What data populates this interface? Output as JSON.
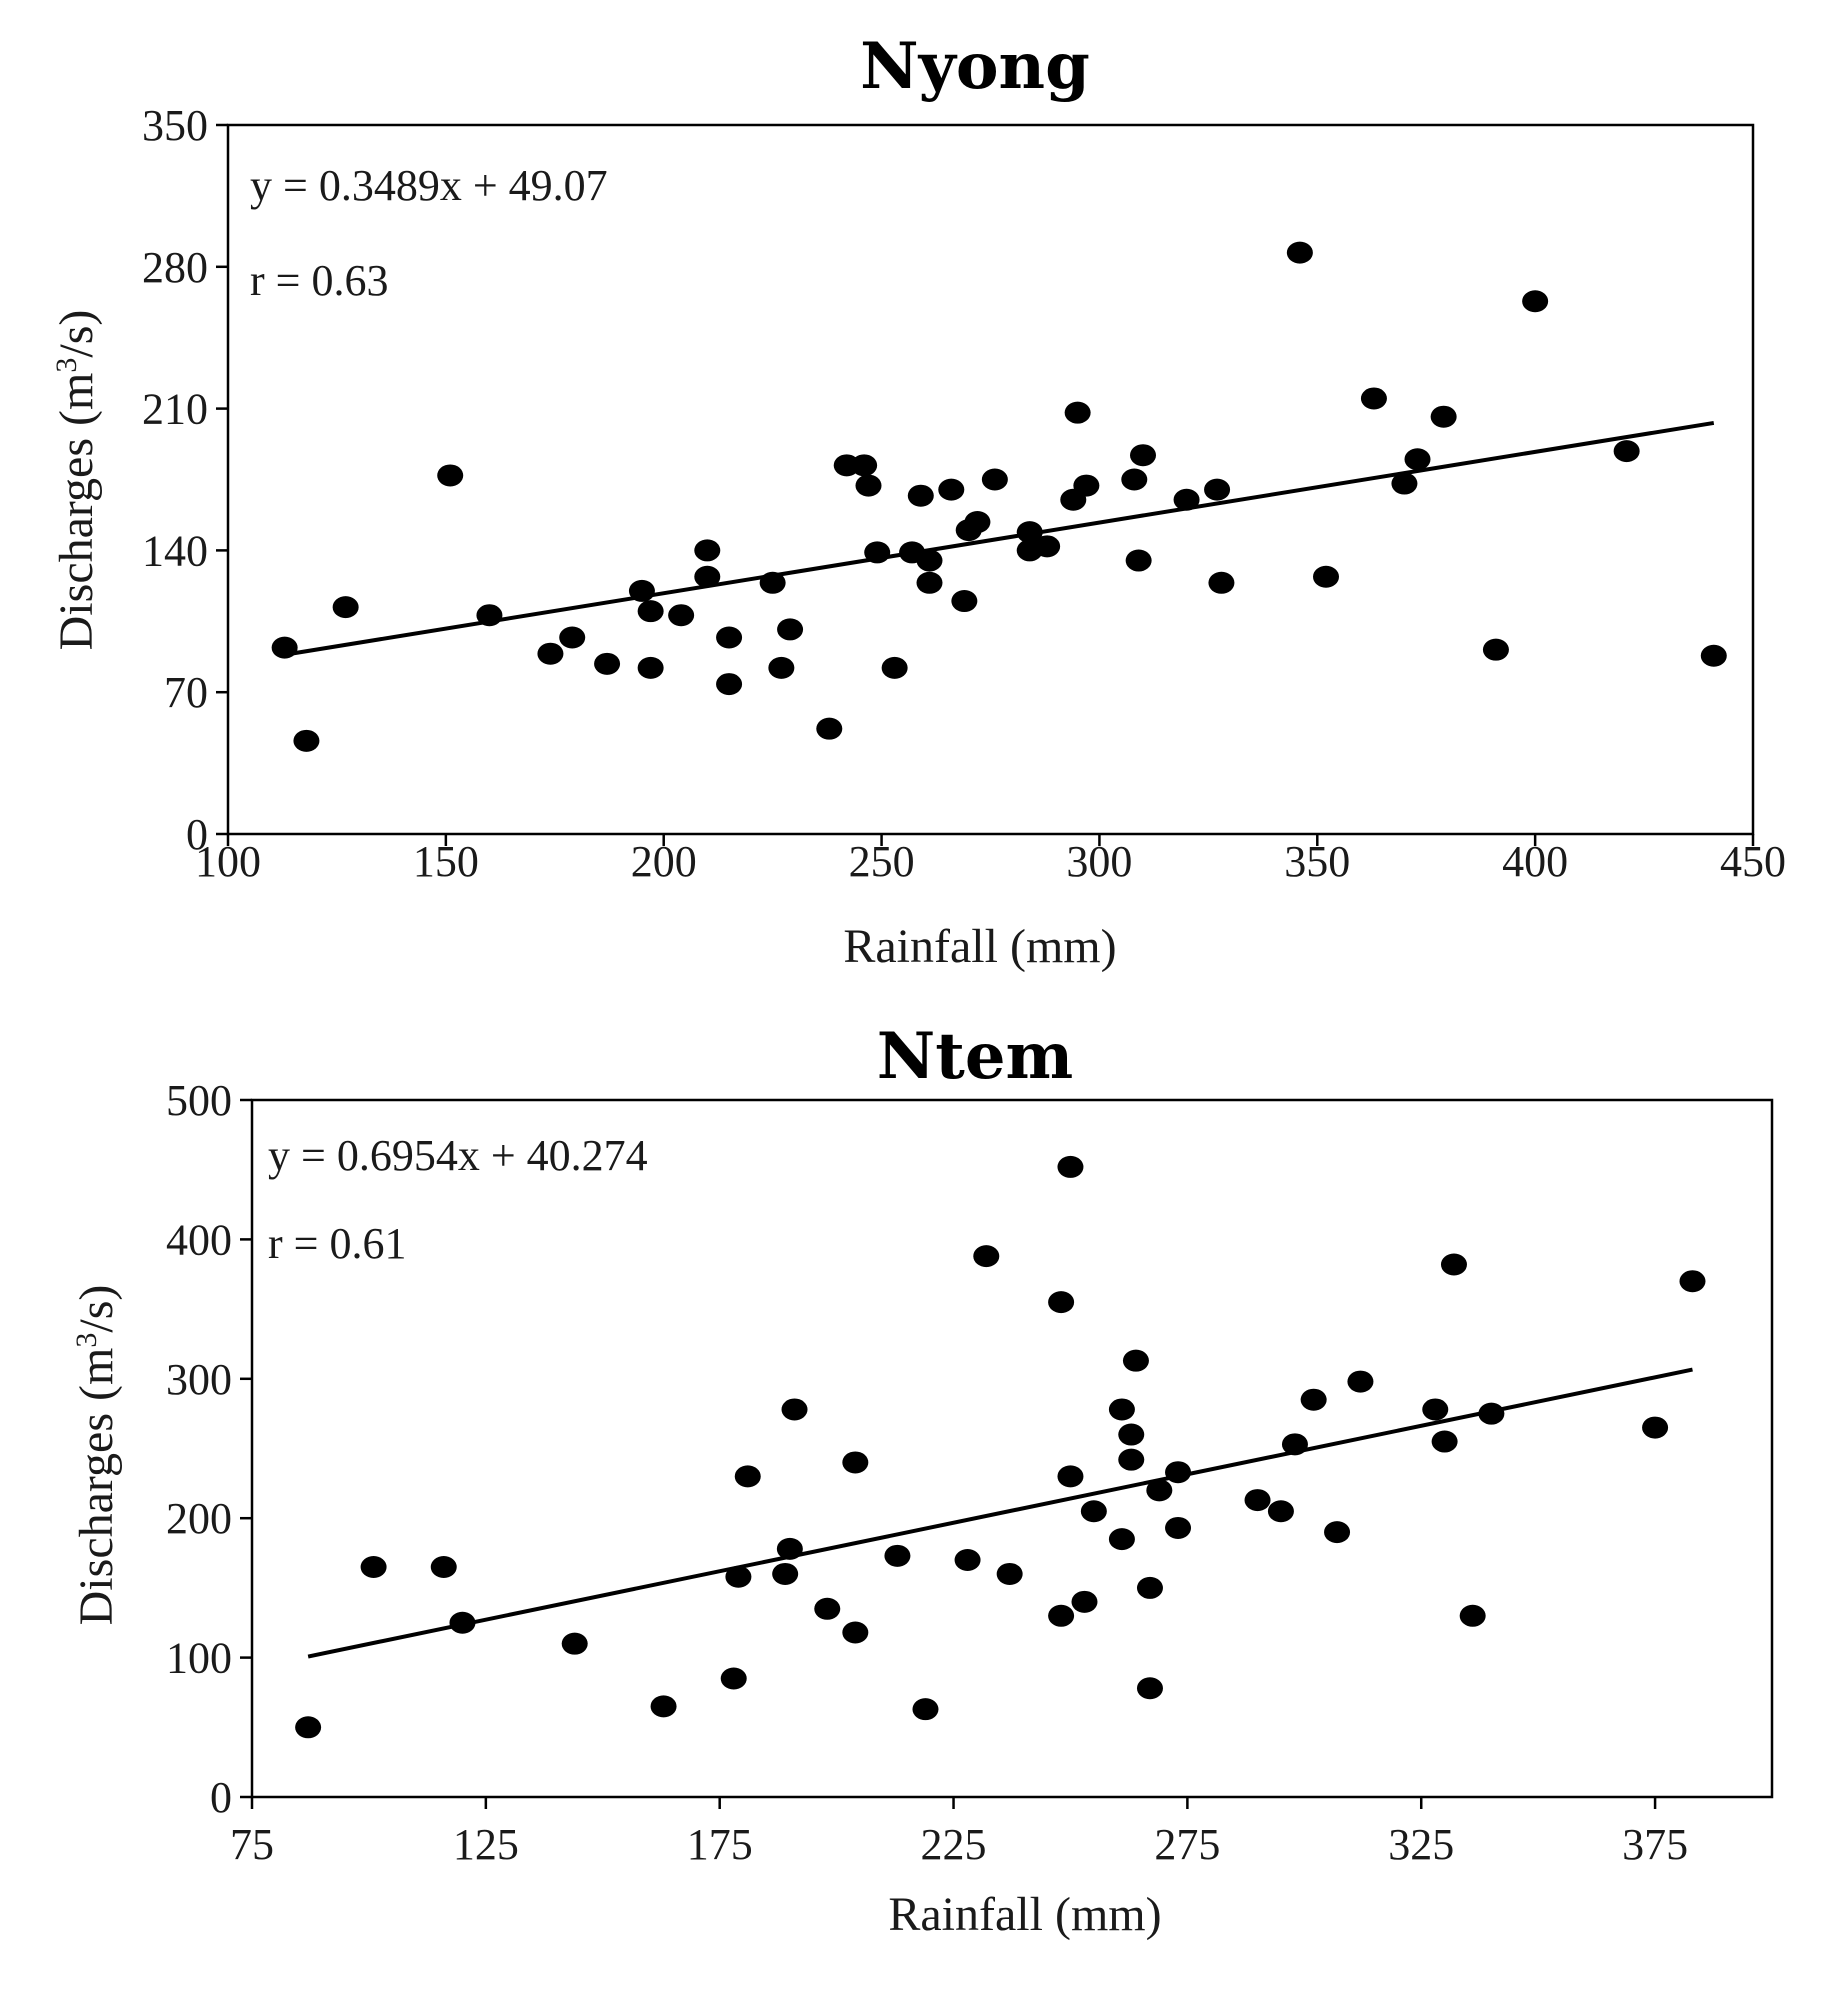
{
  "chart_data": [
    {
      "type": "scatter",
      "title": "Nyong",
      "xlabel": "Rainfall (mm)",
      "ylabel_prefix": "Discharges (m",
      "ylabel_sup": "3",
      "ylabel_suffix": "/s)",
      "xlim": [
        100,
        450
      ],
      "ylim": [
        0,
        350
      ],
      "xticks": [
        "100",
        "150",
        "200",
        "250",
        "300",
        "350",
        "400",
        "450"
      ],
      "yticks": [
        "0",
        "70",
        "140",
        "210",
        "280",
        "350"
      ],
      "equation": "y = 0.3489x + 49.07",
      "r": "r = 0.63",
      "trend": {
        "slope": 0.3489,
        "intercept": 49.07,
        "x_start": 113,
        "x_end": 441
      },
      "points": [
        [
          113,
          92
        ],
        [
          118,
          46
        ],
        [
          127,
          112
        ],
        [
          151,
          177
        ],
        [
          160,
          108
        ],
        [
          174,
          89
        ],
        [
          179,
          97
        ],
        [
          187,
          84
        ],
        [
          195,
          120
        ],
        [
          197,
          110
        ],
        [
          197,
          82
        ],
        [
          204,
          108
        ],
        [
          210,
          140
        ],
        [
          210,
          127
        ],
        [
          215,
          74
        ],
        [
          215,
          97
        ],
        [
          225,
          124
        ],
        [
          227,
          82
        ],
        [
          229,
          101
        ],
        [
          238,
          52
        ],
        [
          242,
          182
        ],
        [
          246,
          182
        ],
        [
          247,
          172
        ],
        [
          249,
          139
        ],
        [
          253,
          82
        ],
        [
          257,
          139
        ],
        [
          259,
          167
        ],
        [
          261,
          135
        ],
        [
          261,
          124
        ],
        [
          266,
          170
        ],
        [
          269,
          115
        ],
        [
          270,
          150
        ],
        [
          272,
          154
        ],
        [
          276,
          175
        ],
        [
          284,
          149
        ],
        [
          284,
          140
        ],
        [
          288,
          142
        ],
        [
          294,
          165
        ],
        [
          295,
          208
        ],
        [
          297,
          172
        ],
        [
          308,
          175
        ],
        [
          309,
          135
        ],
        [
          310,
          187
        ],
        [
          320,
          165
        ],
        [
          327,
          170
        ],
        [
          328,
          124
        ],
        [
          352,
          127
        ],
        [
          346,
          287
        ],
        [
          363,
          215
        ],
        [
          370,
          173
        ],
        [
          373,
          185
        ],
        [
          379,
          206
        ],
        [
          391,
          91
        ],
        [
          400,
          263
        ],
        [
          421,
          189
        ],
        [
          441,
          88
        ]
      ]
    },
    {
      "type": "scatter",
      "title": "Ntem",
      "xlabel": "Rainfall (mm)",
      "ylabel_prefix": "Discharges (m",
      "ylabel_sup": "3",
      "ylabel_suffix": "/s)",
      "xlim": [
        75,
        400
      ],
      "ylim": [
        0,
        500
      ],
      "xticks": [
        "75",
        "125",
        "175",
        "225",
        "275",
        "325",
        "375"
      ],
      "xtick_values": [
        75,
        125,
        175,
        225,
        275,
        325,
        375
      ],
      "yticks": [
        "0",
        "100",
        "200",
        "300",
        "400",
        "500"
      ],
      "equation": "y = 0.6954x + 40.274",
      "r": "r = 0.61",
      "trend": {
        "slope": 0.6954,
        "intercept": 40.274,
        "x_start": 87,
        "x_end": 383
      },
      "points": [
        [
          87,
          50
        ],
        [
          101,
          165
        ],
        [
          116,
          165
        ],
        [
          120,
          125
        ],
        [
          144,
          110
        ],
        [
          163,
          65
        ],
        [
          178,
          85
        ],
        [
          179,
          158
        ],
        [
          181,
          230
        ],
        [
          189,
          160
        ],
        [
          190,
          178
        ],
        [
          191,
          278
        ],
        [
          198,
          135
        ],
        [
          204,
          118
        ],
        [
          204,
          240
        ],
        [
          213,
          173
        ],
        [
          219,
          63
        ],
        [
          228,
          170
        ],
        [
          232,
          388
        ],
        [
          237,
          160
        ],
        [
          248,
          130
        ],
        [
          248,
          355
        ],
        [
          250,
          230
        ],
        [
          250,
          452
        ],
        [
          253,
          140
        ],
        [
          255,
          205
        ],
        [
          261,
          185
        ],
        [
          261,
          278
        ],
        [
          263,
          242
        ],
        [
          263,
          260
        ],
        [
          264,
          313
        ],
        [
          267,
          150
        ],
        [
          267,
          78
        ],
        [
          269,
          220
        ],
        [
          273,
          233
        ],
        [
          273,
          193
        ],
        [
          290,
          213
        ],
        [
          295,
          205
        ],
        [
          298,
          253
        ],
        [
          302,
          285
        ],
        [
          307,
          190
        ],
        [
          312,
          298
        ],
        [
          328,
          278
        ],
        [
          330,
          255
        ],
        [
          332,
          382
        ],
        [
          336,
          130
        ],
        [
          340,
          275
        ],
        [
          375,
          265
        ],
        [
          383,
          370
        ]
      ]
    }
  ]
}
